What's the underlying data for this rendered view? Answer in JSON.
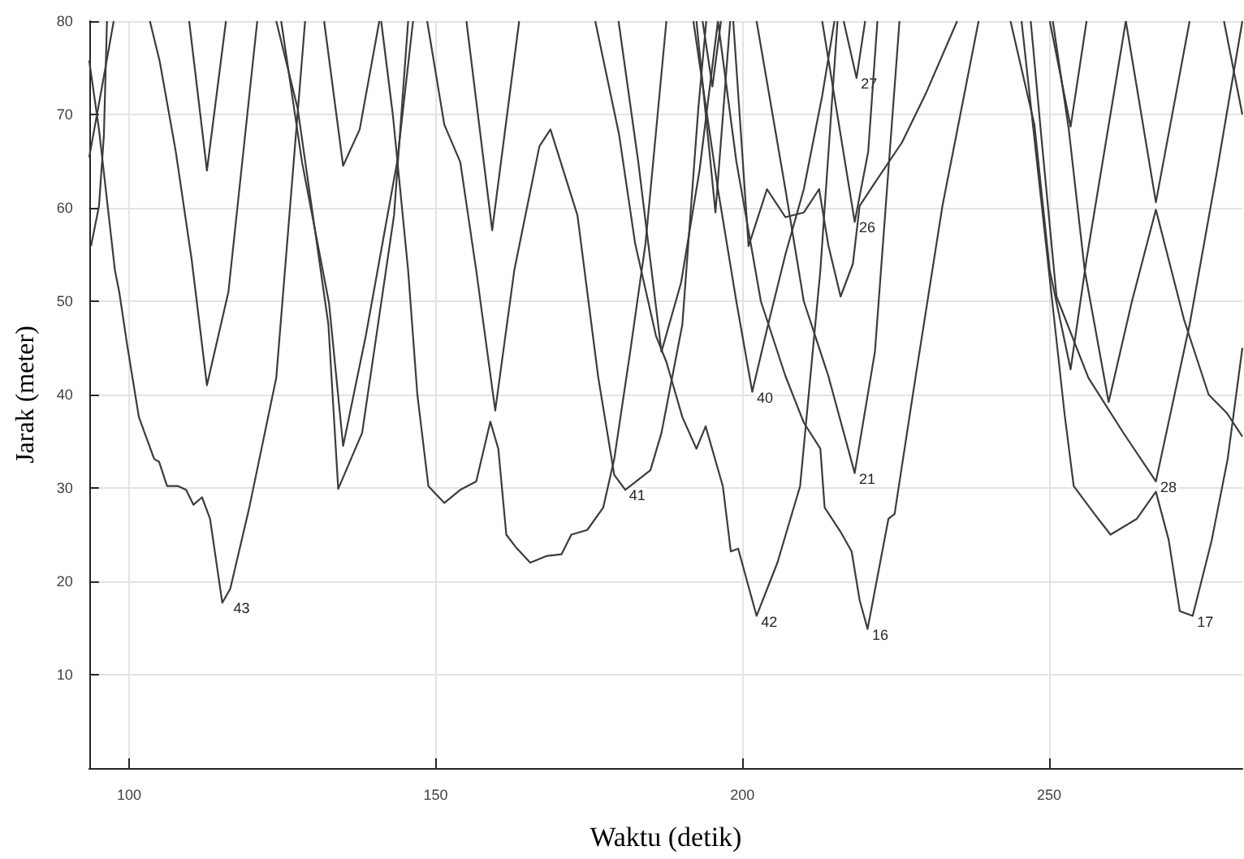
{
  "chart_data": {
    "type": "line",
    "xlabel": "Waktu (detik)",
    "ylabel": "Jarak (meter)",
    "xlim": [
      93.5,
      281.5
    ],
    "xticks": [
      100,
      150,
      200,
      250
    ],
    "ylim": [
      0,
      80
    ],
    "yticks": [
      10,
      20,
      30,
      40,
      50,
      60,
      70,
      80
    ],
    "grid": true,
    "series": [
      {
        "color": "#3c3c3c",
        "x": [
          93.5,
          95.1,
          97.7,
          98.4,
          99.7,
          101.6,
          104.1,
          104.9,
          106.2,
          108,
          109.3,
          110.5,
          111.9,
          113.2,
          115.2,
          116.5,
          119.6,
          124,
          128.7
        ],
        "values": [
          75.8,
          68.4,
          53.3,
          51,
          45.3,
          37.6,
          33.1,
          32.8,
          30.2,
          30.2,
          29.8,
          28.2,
          29,
          26.7,
          17.7,
          19.2,
          27.9,
          41.8,
          80
        ]
      },
      {
        "color": "#3c3c3c",
        "x": [
          103.4,
          105,
          107.6,
          110.2,
          112.7,
          116.2,
          120.9
        ],
        "values": [
          80,
          75.7,
          66.1,
          54.5,
          41,
          51,
          80
        ]
      },
      {
        "color": "#3c3c3c",
        "x": [
          109.8,
          112.7,
          115.8
        ],
        "values": [
          80,
          64,
          80
        ]
      },
      {
        "color": "#3c3c3c",
        "x": [
          93.8,
          95.1,
          95.9,
          96.4
        ],
        "values": [
          55.9,
          60.2,
          67.8,
          80
        ]
      },
      {
        "color": "#3c3c3c",
        "x": [
          93.5,
          95.6,
          97.5
        ],
        "values": [
          65.4,
          73,
          80
        ]
      },
      {
        "color": "#3c3c3c",
        "x": [
          124,
          127.5,
          132.5,
          134.1,
          138,
          143.2,
          145.5
        ],
        "values": [
          80,
          70.6,
          47.5,
          29.9,
          35.9,
          59.2,
          80
        ]
      },
      {
        "color": "#3c3c3c",
        "x": [
          124.8,
          128.2,
          132.6,
          134.9,
          138.6,
          143.7,
          146.3
        ],
        "values": [
          80,
          64.9,
          49.8,
          34.5,
          46.3,
          64.9,
          80
        ]
      },
      {
        "color": "#3c3c3c",
        "x": [
          131.8,
          134.9,
          137.6,
          140.8
        ],
        "values": [
          80,
          64.5,
          68.4,
          80
        ]
      },
      {
        "color": "#3c3c3c",
        "x": [
          141.1,
          143,
          145.5,
          147,
          148.8,
          151.4,
          154,
          156.6,
          158.9,
          160.2,
          161.5,
          163,
          165.4,
          168,
          170.5,
          172.1,
          174.7,
          177.3,
          179.1,
          181.7,
          184.2,
          187.6
        ],
        "values": [
          80,
          70,
          53.3,
          40,
          30.2,
          28.4,
          29.8,
          30.7,
          37.1,
          34.2,
          25,
          23.7,
          22,
          22.7,
          22.9,
          25,
          25.5,
          27.9,
          33.1,
          44.6,
          56.2,
          80
        ]
      },
      {
        "color": "#3c3c3c",
        "x": [
          155,
          159.2,
          163.6
        ],
        "values": [
          80,
          57.6,
          80
        ]
      },
      {
        "color": "#3c3c3c",
        "x": [
          148.6,
          151.4,
          154,
          156.6,
          159.7,
          162.8,
          166.9,
          168.7,
          173.1,
          176.5,
          179.1,
          180.9,
          185,
          186.8,
          190.2,
          192.8,
          194.1
        ],
        "values": [
          80,
          68.9,
          64.9,
          53.3,
          38.3,
          53.3,
          66.6,
          68.4,
          59.2,
          41.8,
          31.4,
          29.8,
          31.9,
          35.9,
          47.5,
          70.6,
          80
        ]
      },
      {
        "color": "#3c3c3c",
        "x": [
          176,
          179.9,
          182.5,
          185.9,
          187.6,
          190.2,
          192.5,
          194,
          196.8,
          198.1,
          199.3,
          202.3,
          205.7,
          209.4,
          212.7,
          215.5
        ],
        "values": [
          80,
          67.8,
          56.2,
          46.3,
          43.5,
          37.6,
          34.2,
          36.6,
          30.2,
          23.2,
          23.5,
          16.3,
          22,
          30.2,
          53.3,
          80
        ]
      },
      {
        "color": "#3c3c3c",
        "x": [
          179.8,
          183,
          186.8,
          190,
          193,
          196
        ],
        "values": [
          80,
          65,
          44.6,
          52,
          64,
          80
        ]
      },
      {
        "color": "#3c3c3c",
        "x": [
          192.5,
          195.6,
          198
        ],
        "values": [
          80,
          59.5,
          80
        ]
      },
      {
        "color": "#3c3c3c",
        "x": [
          193.5,
          195.1,
          196.5
        ],
        "values": [
          80,
          73,
          80
        ]
      },
      {
        "color": "#3c3c3c",
        "x": [
          192,
          196,
          199,
          201.6,
          204,
          207,
          210,
          213,
          215
        ],
        "values": [
          80,
          62,
          50,
          40.3,
          47,
          55,
          62,
          72,
          80
        ]
      },
      {
        "color": "#3c3c3c",
        "x": [
          198.5,
          201,
          204,
          207,
          210,
          212.5,
          214,
          216,
          218,
          219.1,
          221.5,
          226,
          230,
          235
        ],
        "values": [
          80,
          55.9,
          62,
          59,
          59.5,
          62,
          56,
          50.5,
          54,
          60.2,
          62.6,
          67,
          72.4,
          80
        ]
      },
      {
        "color": "#3c3c3c",
        "x": [
          196,
          199,
          203,
          207,
          210,
          212.7,
          213.4,
          216,
          217.8,
          219.1,
          220.4,
          223.8,
          224.8,
          228.2,
          232.6,
          238.5
        ],
        "values": [
          80,
          65,
          50,
          42,
          37,
          34.2,
          27.9,
          25.3,
          23.2,
          18,
          14.9,
          26.7,
          27.2,
          41.8,
          60.2,
          80
        ]
      },
      {
        "color": "#3c3c3c",
        "x": [
          202.3,
          207,
          210,
          214,
          218.3,
          221.6,
          225.6
        ],
        "values": [
          80,
          62,
          50,
          42,
          31.6,
          44.6,
          80
        ]
      },
      {
        "color": "#3c3c3c",
        "x": [
          213,
          218.3,
          220.5,
          222
        ],
        "values": [
          80,
          58.5,
          66,
          80
        ]
      },
      {
        "color": "#3c3c3c",
        "x": [
          216.5,
          218.6,
          220
        ],
        "values": [
          80,
          73.9,
          80
        ]
      },
      {
        "color": "#3c3c3c",
        "x": [
          243.7,
          247.6,
          250.1,
          253.5,
          256.1,
          262.5
        ],
        "values": [
          80,
          68.9,
          53.3,
          42.7,
          54.5,
          80
        ]
      },
      {
        "color": "#3c3c3c",
        "x": [
          250.6,
          253.2,
          255.8,
          259.7,
          263.5,
          267.4,
          272,
          276,
          279,
          281.5
        ],
        "values": [
          80,
          68.4,
          53.3,
          39.2,
          50,
          59.8,
          48,
          40,
          38,
          35.5
        ]
      },
      {
        "color": "#3c3c3c",
        "x": [
          250.1,
          253.5,
          256.1
        ],
        "values": [
          80,
          68.7,
          80
        ]
      },
      {
        "color": "#3c3c3c",
        "x": [
          262.5,
          267.4,
          272.9
        ],
        "values": [
          80,
          60.6,
          80
        ]
      },
      {
        "color": "#3c3c3c",
        "x": [
          247,
          248.7,
          251.2,
          256.4,
          262,
          267.4,
          272.9,
          277.3,
          281.5
        ],
        "values": [
          80,
          67.8,
          50.5,
          41.8,
          36,
          30.7,
          47.5,
          63.7,
          80
        ]
      },
      {
        "color": "#3c3c3c",
        "x": [
          245.5,
          248,
          250.5,
          252.5,
          254,
          257.4,
          260,
          264.3,
          267.4,
          269.5,
          271.3,
          273.4,
          276.5,
          279.1,
          281.5
        ],
        "values": [
          80,
          65,
          50,
          38,
          30.2,
          27.2,
          25,
          26.7,
          29.6,
          24.4,
          16.8,
          16.3,
          24.4,
          33.1,
          45
        ]
      },
      {
        "color": "#3c3c3c",
        "x": [
          278.5,
          281.5
        ],
        "values": [
          80,
          70
        ]
      }
    ],
    "annotations": [
      {
        "text": "43",
        "x": 116.5,
        "y": 17.7
      },
      {
        "text": "41",
        "x": 181,
        "y": 29.8
      },
      {
        "text": "42",
        "x": 202.5,
        "y": 16.3
      },
      {
        "text": "40",
        "x": 201.8,
        "y": 40.3
      },
      {
        "text": "16",
        "x": 220.6,
        "y": 14.9
      },
      {
        "text": "21",
        "x": 218.5,
        "y": 31.6
      },
      {
        "text": "26",
        "x": 218.5,
        "y": 58.5
      },
      {
        "text": "27",
        "x": 218.8,
        "y": 73.9
      },
      {
        "text": "28",
        "x": 267.6,
        "y": 30.7
      },
      {
        "text": "17",
        "x": 273.6,
        "y": 16.3
      }
    ]
  }
}
